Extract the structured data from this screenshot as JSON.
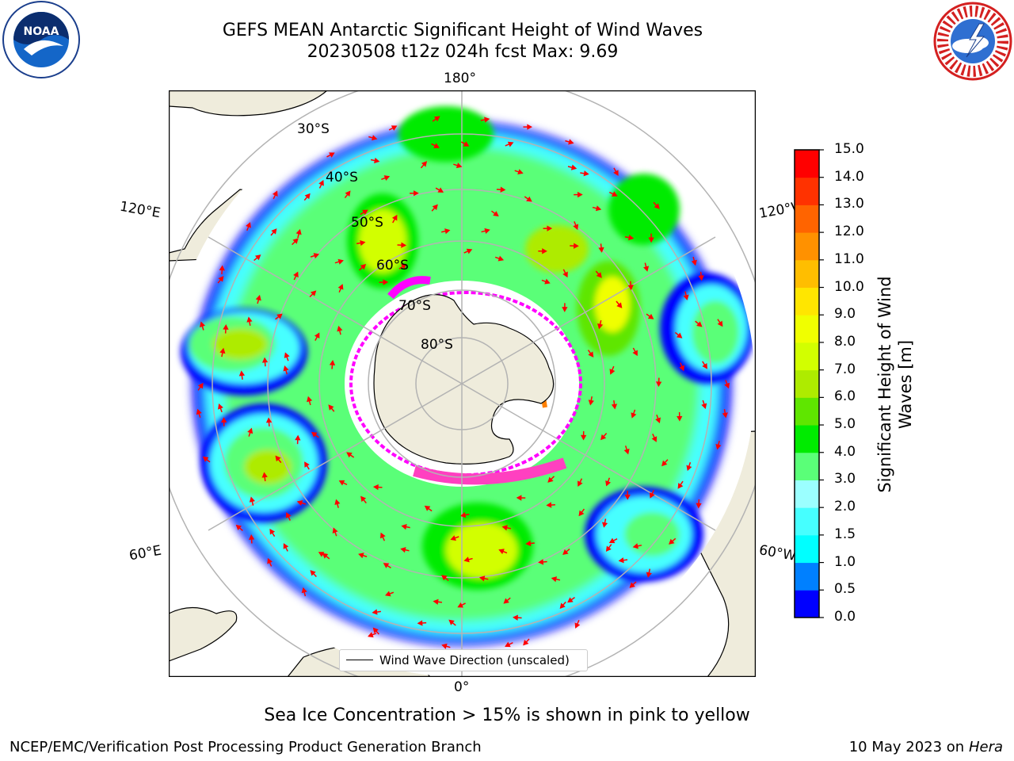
{
  "header": {
    "title_line1": "GEFS MEAN Antarctic Significant Height of Wind Waves",
    "title_line2": "20230508 t12z 024h fcst   Max: 9.69"
  },
  "logos": {
    "left": {
      "icon": "noaa-logo",
      "text": "NOAA"
    },
    "right": {
      "icon": "national-weather-service-logo"
    }
  },
  "map": {
    "projection": "south-polar-stereographic",
    "lon_labels": {
      "top": "180°",
      "bottom": "0°",
      "upper_left": "120°E",
      "upper_right": "120°W",
      "lower_left": "60°E",
      "lower_right": "60°W"
    },
    "lat_labels": [
      "30°S",
      "40°S",
      "50°S",
      "60°S",
      "70°S",
      "80°S"
    ],
    "legend": "Wind Wave Direction (unscaled)",
    "colors": {
      "land": "#efecdc",
      "arrow": "#ff0000",
      "ice_low": "#ff00ff",
      "ice_high": "#ffd700",
      "graticule": "#b3b3b3"
    }
  },
  "colorbar": {
    "label": "Significant Height of Wind Waves [m]",
    "ticks": [
      "0.0",
      "0.5",
      "1.0",
      "1.5",
      "2.0",
      "3.0",
      "4.0",
      "5.0",
      "6.0",
      "7.0",
      "8.0",
      "9.0",
      "10.0",
      "11.0",
      "12.0",
      "13.0",
      "14.0",
      "15.0"
    ],
    "colors": [
      "#0000ff",
      "#0080ff",
      "#00ffff",
      "#46ffff",
      "#9bffff",
      "#5aff78",
      "#00eb00",
      "#5fe600",
      "#aeeb00",
      "#d2ff00",
      "#f0ff00",
      "#ffe600",
      "#ffbe00",
      "#ff9100",
      "#ff6400",
      "#ff3200",
      "#ff0000"
    ]
  },
  "footer": {
    "ice_note": "Sea Ice Concentration > 15% is shown in pink to yellow",
    "left": "NCEP/EMC/Verification Post Processing Product Generation Branch",
    "right_date": "10 May 2023 on",
    "right_machine": "Hera"
  }
}
